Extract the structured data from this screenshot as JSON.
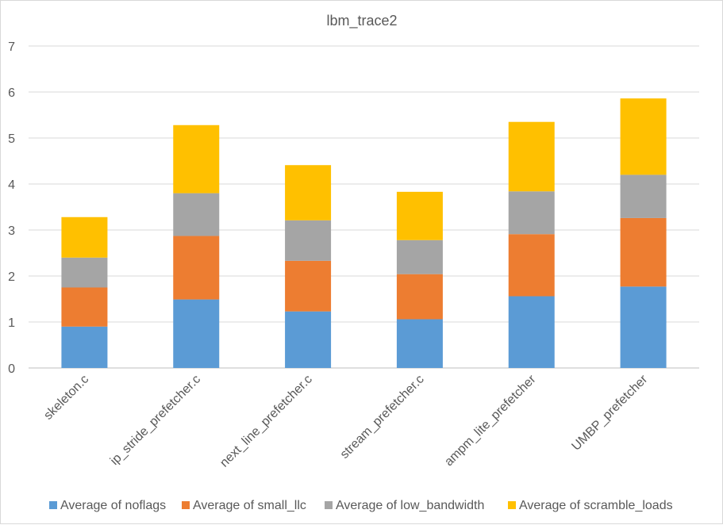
{
  "chart_data": {
    "type": "bar",
    "stacked": true,
    "title": "lbm_trace2",
    "xlabel": "",
    "ylabel": "",
    "ylim": [
      0,
      7
    ],
    "yticks": [
      0,
      1,
      2,
      3,
      4,
      5,
      6,
      7
    ],
    "grid": true,
    "legend_position": "bottom",
    "categories": [
      "skeleton.c",
      "ip_stride_prefetcher.c",
      "next_line_prefetcher.c",
      "stream_prefetcher.c",
      "ampm_lite_prefetcher",
      "UMBP_prefetcher"
    ],
    "series": [
      {
        "name": "Average of noflags",
        "color": "#5b9bd5",
        "values": [
          0.9,
          1.49,
          1.23,
          1.06,
          1.56,
          1.77
        ]
      },
      {
        "name": "Average of small_llc",
        "color": "#ed7d31",
        "values": [
          0.85,
          1.38,
          1.1,
          0.98,
          1.35,
          1.49
        ]
      },
      {
        "name": "Average of low_bandwidth",
        "color": "#a5a5a5",
        "values": [
          0.65,
          0.93,
          0.88,
          0.74,
          0.93,
          0.94
        ]
      },
      {
        "name": "Average of scramble_loads",
        "color": "#ffc000",
        "values": [
          0.88,
          1.48,
          1.2,
          1.05,
          1.51,
          1.66
        ]
      }
    ]
  }
}
